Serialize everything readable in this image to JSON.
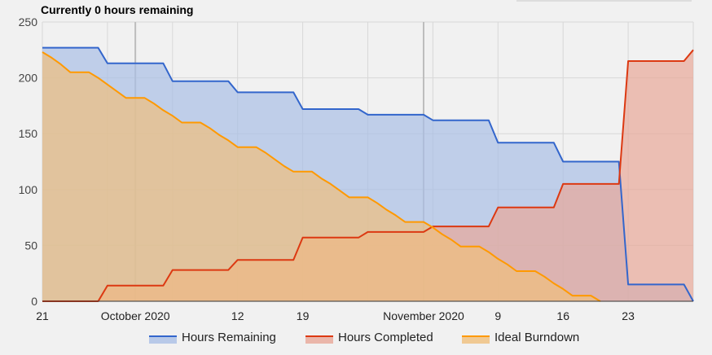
{
  "chart_data": {
    "type": "area",
    "title": "Currently 0 hours remaining",
    "ylim": [
      0,
      250
    ],
    "yticks": [
      0,
      50,
      100,
      150,
      200,
      250
    ],
    "xlim": [
      "2020-09-21",
      "2020-11-30"
    ],
    "x_ticks": [
      {
        "date": "2020-09-21",
        "label": "21"
      },
      {
        "date": "2020-10-01",
        "label": "October 2020"
      },
      {
        "date": "2020-10-12",
        "label": "12"
      },
      {
        "date": "2020-10-19",
        "label": "19"
      },
      {
        "date": "2020-11-01",
        "label": "November 2020"
      },
      {
        "date": "2020-11-09",
        "label": "9"
      },
      {
        "date": "2020-11-16",
        "label": "16"
      },
      {
        "date": "2020-11-23",
        "label": "23"
      }
    ],
    "month_boundaries": [
      "2020-10-01",
      "2020-11-01"
    ],
    "legend_position": "bottom",
    "series": [
      {
        "name": "Hours Remaining",
        "color": "#3366cc",
        "fill": "#aabfe6",
        "points": [
          [
            "2020-09-21",
            227
          ],
          [
            "2020-09-27",
            227
          ],
          [
            "2020-09-28",
            213
          ],
          [
            "2020-10-04",
            213
          ],
          [
            "2020-10-05",
            197
          ],
          [
            "2020-10-11",
            197
          ],
          [
            "2020-10-12",
            187
          ],
          [
            "2020-10-18",
            187
          ],
          [
            "2020-10-19",
            172
          ],
          [
            "2020-10-25",
            172
          ],
          [
            "2020-10-26",
            167
          ],
          [
            "2020-11-01",
            167
          ],
          [
            "2020-11-02",
            162
          ],
          [
            "2020-11-08",
            162
          ],
          [
            "2020-11-09",
            142
          ],
          [
            "2020-11-15",
            142
          ],
          [
            "2020-11-16",
            125
          ],
          [
            "2020-11-22",
            125
          ],
          [
            "2020-11-23",
            15
          ],
          [
            "2020-11-29",
            15
          ],
          [
            "2020-11-30",
            0
          ]
        ]
      },
      {
        "name": "Hours Completed",
        "color": "#dc3912",
        "fill": "#e8a899",
        "points": [
          [
            "2020-09-21",
            0
          ],
          [
            "2020-09-27",
            0
          ],
          [
            "2020-09-28",
            14
          ],
          [
            "2020-10-04",
            14
          ],
          [
            "2020-10-05",
            28
          ],
          [
            "2020-10-11",
            28
          ],
          [
            "2020-10-12",
            37
          ],
          [
            "2020-10-18",
            37
          ],
          [
            "2020-10-19",
            57
          ],
          [
            "2020-10-25",
            57
          ],
          [
            "2020-10-26",
            62
          ],
          [
            "2020-11-01",
            62
          ],
          [
            "2020-11-02",
            67
          ],
          [
            "2020-11-08",
            67
          ],
          [
            "2020-11-09",
            84
          ],
          [
            "2020-11-15",
            84
          ],
          [
            "2020-11-16",
            105
          ],
          [
            "2020-11-22",
            105
          ],
          [
            "2020-11-23",
            215
          ],
          [
            "2020-11-29",
            215
          ],
          [
            "2020-11-30",
            225
          ]
        ]
      },
      {
        "name": "Ideal Burndown",
        "color": "#ff9900",
        "fill": "#f0bf7c",
        "points": [
          [
            "2020-09-21",
            223
          ],
          [
            "2020-09-22",
            218
          ],
          [
            "2020-09-23",
            212
          ],
          [
            "2020-09-24",
            205
          ],
          [
            "2020-09-25",
            205
          ],
          [
            "2020-09-26",
            205
          ],
          [
            "2020-09-27",
            200
          ],
          [
            "2020-09-28",
            194
          ],
          [
            "2020-09-29",
            188
          ],
          [
            "2020-09-30",
            182
          ],
          [
            "2020-10-01",
            182
          ],
          [
            "2020-10-02",
            182
          ],
          [
            "2020-10-03",
            177
          ],
          [
            "2020-10-04",
            171
          ],
          [
            "2020-10-05",
            166
          ],
          [
            "2020-10-06",
            160
          ],
          [
            "2020-10-07",
            160
          ],
          [
            "2020-10-08",
            160
          ],
          [
            "2020-10-09",
            155
          ],
          [
            "2020-10-10",
            149
          ],
          [
            "2020-10-11",
            144
          ],
          [
            "2020-10-12",
            138
          ],
          [
            "2020-10-13",
            138
          ],
          [
            "2020-10-14",
            138
          ],
          [
            "2020-10-15",
            133
          ],
          [
            "2020-10-16",
            127
          ],
          [
            "2020-10-17",
            121
          ],
          [
            "2020-10-18",
            116
          ],
          [
            "2020-10-19",
            116
          ],
          [
            "2020-10-20",
            116
          ],
          [
            "2020-10-21",
            110
          ],
          [
            "2020-10-22",
            105
          ],
          [
            "2020-10-23",
            99
          ],
          [
            "2020-10-24",
            93
          ],
          [
            "2020-10-25",
            93
          ],
          [
            "2020-10-26",
            93
          ],
          [
            "2020-10-27",
            88
          ],
          [
            "2020-10-28",
            82
          ],
          [
            "2020-10-29",
            77
          ],
          [
            "2020-10-30",
            71
          ],
          [
            "2020-10-31",
            71
          ],
          [
            "2020-11-01",
            71
          ],
          [
            "2020-11-02",
            66
          ],
          [
            "2020-11-03",
            60
          ],
          [
            "2020-11-04",
            55
          ],
          [
            "2020-11-05",
            49
          ],
          [
            "2020-11-06",
            49
          ],
          [
            "2020-11-07",
            49
          ],
          [
            "2020-11-08",
            44
          ],
          [
            "2020-11-09",
            38
          ],
          [
            "2020-11-10",
            33
          ],
          [
            "2020-11-11",
            27
          ],
          [
            "2020-11-12",
            27
          ],
          [
            "2020-11-13",
            27
          ],
          [
            "2020-11-14",
            22
          ],
          [
            "2020-11-15",
            16
          ],
          [
            "2020-11-16",
            11
          ],
          [
            "2020-11-17",
            5
          ],
          [
            "2020-11-18",
            5
          ],
          [
            "2020-11-19",
            5
          ],
          [
            "2020-11-20",
            0
          ]
        ]
      }
    ]
  }
}
